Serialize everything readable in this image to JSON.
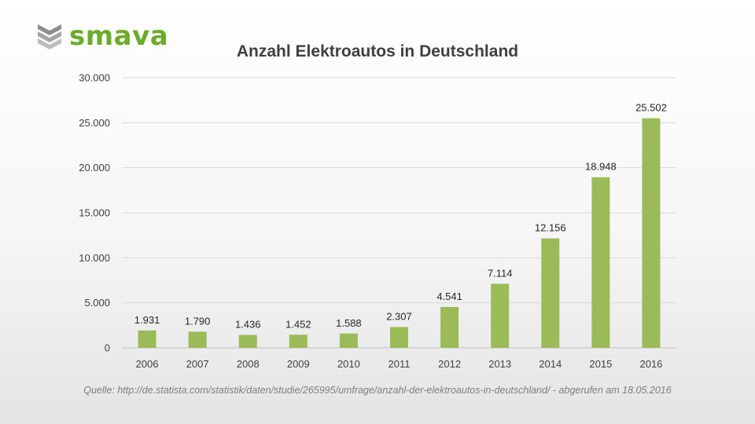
{
  "brand": {
    "name": "smava",
    "logo_icon": "smava-shield-icon",
    "color": "#6aac2a"
  },
  "bar_color": "#9bbb59",
  "source": "Quelle: http://de.statista.com/statistik/daten/studie/265995/umfrage/anzahl-der-elektroautos-in-deutschland/ - abgerufen am 18.05.2016",
  "chart_data": {
    "type": "bar",
    "title": "Anzahl Elektroautos in Deutschland",
    "xlabel": "",
    "ylabel": "",
    "categories": [
      "2006",
      "2007",
      "2008",
      "2009",
      "2010",
      "2011",
      "2012",
      "2013",
      "2014",
      "2015",
      "2016"
    ],
    "values": [
      1931,
      1790,
      1436,
      1452,
      1588,
      2307,
      4541,
      7114,
      12156,
      18948,
      25502
    ],
    "value_labels": [
      "1.931",
      "1.790",
      "1.436",
      "1.452",
      "1.588",
      "2.307",
      "4.541",
      "7.114",
      "12.156",
      "18.948",
      "25.502"
    ],
    "ylim": [
      0,
      30000
    ],
    "yticks": [
      0,
      5000,
      10000,
      15000,
      20000,
      25000,
      30000
    ],
    "ytick_labels": [
      "0",
      "5.000",
      "10.000",
      "15.000",
      "20.000",
      "25.000",
      "30.000"
    ],
    "grid": true,
    "legend": "none"
  }
}
